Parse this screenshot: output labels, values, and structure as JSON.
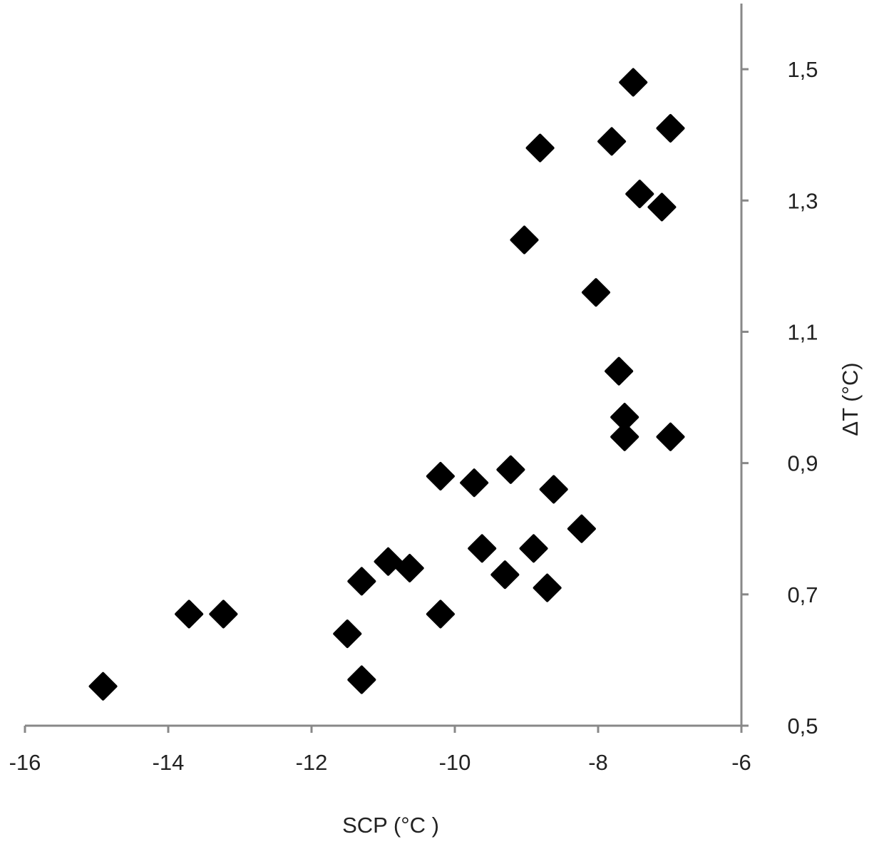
{
  "chart_data": {
    "type": "scatter",
    "x_label": "SCP (°C )",
    "y_label": "ΔT (°C)",
    "color": "#000000",
    "x": [
      -14.91,
      -13.71,
      -13.23,
      -11.5,
      -11.3,
      -11.3,
      -10.93,
      -10.63,
      -10.2,
      -10.2,
      -9.73,
      -9.62,
      -9.3,
      -9.22,
      -8.9,
      -8.71,
      -8.62,
      -8.23,
      -9.03,
      -8.81,
      -8.03,
      -7.81,
      -7.71,
      -7.63,
      -7.63,
      -7.51,
      -7.42,
      -7.11,
      -6.99,
      -6.99
    ],
    "values": [
      0.56,
      0.67,
      0.67,
      0.64,
      0.57,
      0.72,
      0.75,
      0.74,
      0.67,
      0.88,
      0.87,
      0.77,
      0.73,
      0.89,
      0.77,
      0.71,
      0.86,
      0.8,
      1.24,
      1.38,
      1.16,
      1.39,
      1.04,
      0.97,
      0.94,
      1.48,
      1.31,
      1.29,
      1.41,
      0.94
    ],
    "xlim": [
      -16,
      -6
    ],
    "xticks": [
      -16,
      -14,
      -12,
      -10,
      -8,
      -6
    ],
    "ylim": [
      0.5,
      1.6
    ],
    "yticks": [
      {
        "value": 0.5,
        "label": "0,5"
      },
      {
        "value": 0.7,
        "label": "0,7"
      },
      {
        "value": 0.9,
        "label": "0,9"
      },
      {
        "value": 1.1,
        "label": "1,1"
      },
      {
        "value": 1.3,
        "label": "1,3"
      },
      {
        "value": 1.5,
        "label": "1,5"
      }
    ],
    "y_axis_side": "right",
    "grid": false
  }
}
